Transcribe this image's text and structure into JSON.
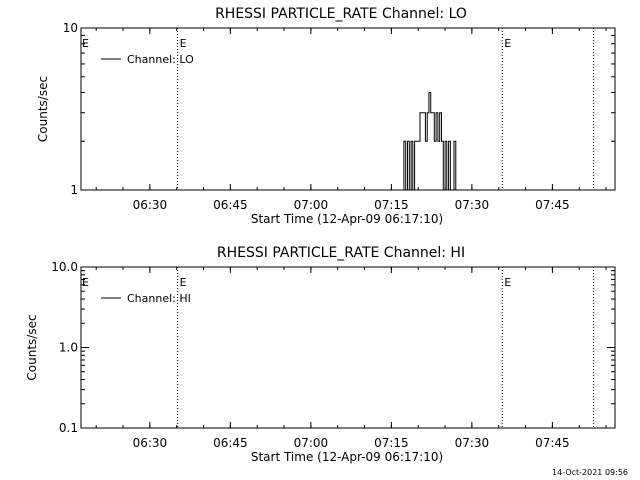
{
  "chart_data": [
    {
      "type": "line",
      "title": "RHESSI PARTICLE_RATE Channel: LO",
      "xlabel": "Start Time (12-Apr-09 06:17:10)",
      "ylabel": "Counts/sec",
      "yscale": "log",
      "xlim": [
        "06:17:10",
        "07:56:40"
      ],
      "ylim": [
        1,
        10
      ],
      "x_ticks": [
        "06:30",
        "06:45",
        "07:00",
        "07:15",
        "07:30",
        "07:45"
      ],
      "y_ticks": [
        "1",
        "10"
      ],
      "legend": {
        "entries": [
          "Channel: LO"
        ],
        "placement": "top-left"
      },
      "grid": false,
      "markers": [
        {
          "time": "06:35:10",
          "label": "E"
        },
        {
          "time": "07:35:40",
          "label": "E"
        },
        {
          "time": "07:52:40"
        }
      ],
      "series": [
        {
          "name": "Channel: LO",
          "step": true,
          "x": [
            "07:17:00",
            "07:17:20",
            "07:17:40",
            "07:18:00",
            "07:18:20",
            "07:18:40",
            "07:19:00",
            "07:19:20",
            "07:19:40",
            "07:20:00",
            "07:20:20",
            "07:20:40",
            "07:21:00",
            "07:21:20",
            "07:21:40",
            "07:22:00",
            "07:22:20",
            "07:22:40",
            "07:23:00",
            "07:23:20",
            "07:23:40",
            "07:24:00",
            "07:24:20",
            "07:24:40",
            "07:25:00",
            "07:25:20",
            "07:25:40",
            "07:26:00",
            "07:26:20",
            "07:26:40",
            "07:27:00"
          ],
          "values": [
            1,
            2,
            1,
            2,
            1,
            2,
            1,
            2,
            2,
            2,
            3,
            3,
            3,
            2,
            3,
            4,
            3,
            3,
            2,
            3,
            2,
            3,
            2,
            1,
            2,
            1,
            2,
            1,
            1,
            2,
            1
          ]
        }
      ]
    },
    {
      "type": "line",
      "title": "RHESSI PARTICLE_RATE Channel: HI",
      "xlabel": "Start Time (12-Apr-09 06:17:10)",
      "ylabel": "Counts/sec",
      "yscale": "log",
      "xlim": [
        "06:17:10",
        "07:56:40"
      ],
      "ylim": [
        0.1,
        10
      ],
      "x_ticks": [
        "06:30",
        "06:45",
        "07:00",
        "07:15",
        "07:30",
        "07:45"
      ],
      "y_ticks": [
        "0.1",
        "1.0",
        "10.0"
      ],
      "legend": {
        "entries": [
          "Channel: HI"
        ],
        "placement": "top-left"
      },
      "grid": false,
      "markers": [
        {
          "time": "06:35:10",
          "label": "E"
        },
        {
          "time": "07:35:40",
          "label": "E"
        },
        {
          "time": "07:52:40"
        }
      ],
      "series": [
        {
          "name": "Channel: HI",
          "step": true,
          "x": [],
          "values": []
        }
      ]
    }
  ],
  "footer": {
    "timestamp": "14-Oct-2021 09:56"
  }
}
